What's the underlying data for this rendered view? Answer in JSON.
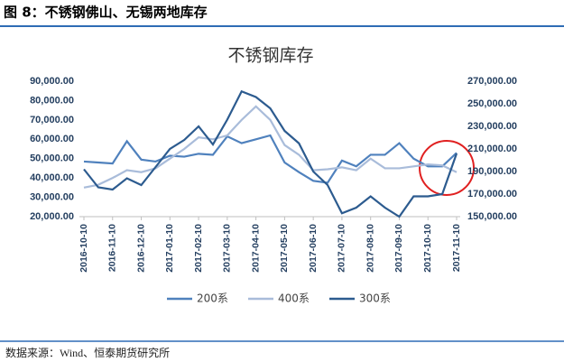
{
  "figure_title": "图 8：不锈钢佛山、无锡两地库存",
  "source": "数据来源：Wind、恒泰期货研究所",
  "chart_data": {
    "type": "line",
    "title": "不锈钢库存",
    "categories": [
      "2016-10-10",
      null,
      "2016-11-10",
      null,
      "2016-12-10",
      null,
      "2017-01-10",
      null,
      "2017-02-10",
      null,
      "2017-03-10",
      null,
      "2017-04-10",
      null,
      "2017-05-10",
      null,
      "2017-06-10",
      null,
      "2017-07-10",
      null,
      "2017-08-10",
      null,
      "2017-09-10",
      null,
      "2017-10-10",
      null,
      "2017-11-10"
    ],
    "series": [
      {
        "name": "200系",
        "color": "#4f81bd",
        "axis": "y",
        "values": [
          48500,
          48000,
          47500,
          59000,
          49500,
          48500,
          51500,
          51000,
          52500,
          52000,
          61500,
          58000,
          60000,
          62000,
          48000,
          43000,
          38500,
          37500,
          49000,
          46000,
          52000,
          52000,
          58000,
          50000,
          46000,
          46000,
          53000
        ]
      },
      {
        "name": "400系",
        "color": "#a9bcda",
        "axis": "y",
        "values": [
          35000,
          36500,
          40000,
          44000,
          43000,
          45000,
          50000,
          55000,
          61000,
          60000,
          62000,
          70000,
          77000,
          70000,
          57000,
          52000,
          44000,
          44500,
          45500,
          44000,
          50000,
          45000,
          45000,
          46000,
          47000,
          46500,
          43000
        ]
      },
      {
        "name": "300系",
        "color": "#2c5b8f",
        "axis": "y2",
        "values": [
          192000,
          176000,
          174000,
          184000,
          178000,
          194000,
          210000,
          218000,
          230000,
          214000,
          236000,
          261000,
          256000,
          246000,
          226000,
          215000,
          190000,
          178000,
          153000,
          158000,
          168000,
          158000,
          150000,
          168000,
          168000,
          170000,
          206000
        ]
      }
    ],
    "ylim": [
      20000,
      90000
    ],
    "yticks": [
      {
        "value": 20000,
        "label": "20,000.00"
      },
      {
        "value": 30000,
        "label": "30,000.00"
      },
      {
        "value": 40000,
        "label": "40,000.00"
      },
      {
        "value": 50000,
        "label": "50,000.00"
      },
      {
        "value": 60000,
        "label": "60,000.00"
      },
      {
        "value": 70000,
        "label": "70,000.00"
      },
      {
        "value": 80000,
        "label": "80,000.00"
      },
      {
        "value": 90000,
        "label": "90,000.00"
      }
    ],
    "y2lim": [
      150000,
      270000
    ],
    "y2ticks": [
      {
        "value": 150000,
        "label": "150,000.00"
      },
      {
        "value": 170000,
        "label": "170,000.00"
      },
      {
        "value": 190000,
        "label": "190,000.00"
      },
      {
        "value": 210000,
        "label": "210,000.00"
      },
      {
        "value": 230000,
        "label": "230,000.00"
      },
      {
        "value": 250000,
        "label": "250,000.00"
      },
      {
        "value": 270000,
        "label": "270,000.00"
      }
    ],
    "legend": "bottom"
  }
}
